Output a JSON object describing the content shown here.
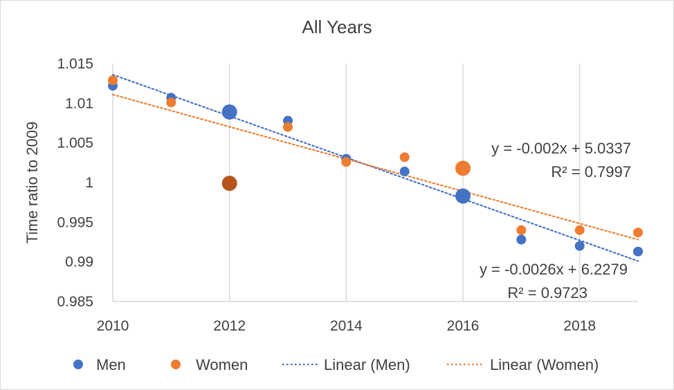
{
  "chart_data": {
    "type": "scatter",
    "title": "All Years",
    "xlabel": "",
    "ylabel": "Time ratio to 2009",
    "xlim": [
      2010,
      2019
    ],
    "ylim": [
      0.985,
      1.015
    ],
    "x_ticks": [
      2010,
      2012,
      2014,
      2016,
      2018
    ],
    "x_tick_labels": [
      "2010",
      "2012",
      "2014",
      "2016",
      "2018"
    ],
    "y_ticks": [
      0.985,
      0.99,
      0.995,
      1,
      1.005,
      1.01,
      1.015
    ],
    "y_tick_labels": [
      "0.985",
      "0.99",
      "0.995",
      "1",
      "1.005",
      "1.01",
      "1.015"
    ],
    "grid": {
      "vertical": true,
      "horizontal": false
    },
    "series": [
      {
        "name": "Men",
        "color": "#4472C4",
        "points": [
          {
            "x": 2010,
            "y": 1.0122
          },
          {
            "x": 2011,
            "y": 1.0107
          },
          {
            "x": 2012,
            "y": 1.0089,
            "large": true
          },
          {
            "x": 2013,
            "y": 1.0078
          },
          {
            "x": 2014,
            "y": 1.003
          },
          {
            "x": 2015,
            "y": 1.0014
          },
          {
            "x": 2016,
            "y": 0.9983,
            "large": true
          },
          {
            "x": 2017,
            "y": 0.9928
          },
          {
            "x": 2018,
            "y": 0.992
          },
          {
            "x": 2019,
            "y": 0.9913
          }
        ],
        "trendline": {
          "name": "Linear (Men)",
          "start": [
            2010,
            1.0136
          ],
          "end": [
            2019,
            0.9901
          ],
          "equation": "y = -0.0026x + 6.2279",
          "r2": "R² = 0.9723"
        }
      },
      {
        "name": "Women",
        "color": "#ED7D31",
        "points": [
          {
            "x": 2010,
            "y": 1.0129
          },
          {
            "x": 2011,
            "y": 1.0101
          },
          {
            "x": 2012,
            "y": 0.9999,
            "large": true,
            "dark": true
          },
          {
            "x": 2013,
            "y": 1.007
          },
          {
            "x": 2014,
            "y": 1.0026
          },
          {
            "x": 2015,
            "y": 1.0032
          },
          {
            "x": 2016,
            "y": 1.0018,
            "large": true
          },
          {
            "x": 2017,
            "y": 0.994
          },
          {
            "x": 2018,
            "y": 0.994
          },
          {
            "x": 2019,
            "y": 0.9937
          }
        ],
        "trendline": {
          "name": "Linear (Women)",
          "start": [
            2010,
            1.0111
          ],
          "end": [
            2019,
            0.9928
          ],
          "equation": "y = -0.002x + 5.0337",
          "r2": "R² = 0.7997"
        }
      }
    ],
    "legend": {
      "placement": "bottom",
      "entries": [
        "Men",
        "Women",
        "Linear (Men)",
        "Linear (Women)"
      ]
    },
    "colors": {
      "men": "#4472C4",
      "women": "#ED7D31",
      "overlap": "#B5551C",
      "grid": "#D9D9D9",
      "text": "#404040"
    }
  }
}
